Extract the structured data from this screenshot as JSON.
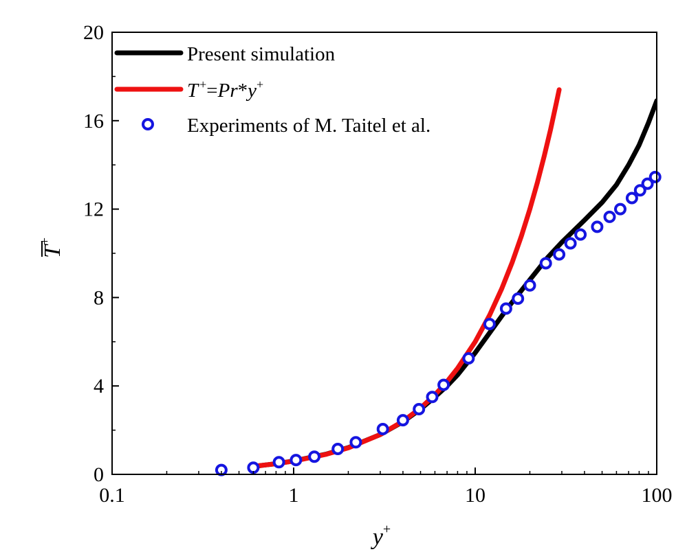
{
  "chart_data": {
    "type": "line",
    "title": "",
    "xlabel": "y",
    "xlabel_sup": "+",
    "ylabel": "T",
    "ylabel_sup": "+",
    "xscale": "log",
    "xlim": [
      0.1,
      100
    ],
    "ylim": [
      0,
      20
    ],
    "x_ticks": [
      0.1,
      1,
      10,
      100
    ],
    "x_tick_labels": [
      "0.1",
      "1",
      "10",
      "100"
    ],
    "y_ticks": [
      0,
      4,
      8,
      12,
      16,
      20
    ],
    "y_tick_labels": [
      "0",
      "4",
      "8",
      "12",
      "16",
      "20"
    ],
    "grid": false,
    "legend_position": "top-left",
    "series": [
      {
        "name": "Present simulation",
        "kind": "line",
        "color": "#000000",
        "x": [
          0.6,
          0.8,
          1,
          1.5,
          2,
          3,
          4,
          5,
          6,
          7,
          8,
          10,
          12,
          15,
          20,
          25,
          30,
          40,
          50,
          60,
          70,
          80,
          90,
          100
        ],
        "y": [
          0.36,
          0.48,
          0.61,
          0.91,
          1.21,
          1.8,
          2.38,
          2.95,
          3.5,
          4.0,
          4.5,
          5.5,
          6.4,
          7.5,
          8.8,
          9.8,
          10.5,
          11.5,
          12.3,
          13.1,
          14.0,
          14.9,
          15.9,
          16.9
        ]
      },
      {
        "name": "T+=Pr*y+",
        "legend_parts": [
          "T",
          "+",
          "=",
          "Pr",
          "*",
          "y",
          "+"
        ],
        "kind": "line",
        "color": "#ee1111",
        "x": [
          0.6,
          0.8,
          1,
          1.5,
          2,
          3,
          4,
          5,
          6,
          7,
          8,
          10,
          12,
          14,
          16,
          18,
          20,
          22,
          24,
          26,
          28,
          29
        ],
        "y": [
          0.36,
          0.48,
          0.6,
          0.9,
          1.2,
          1.8,
          2.4,
          3.0,
          3.6,
          4.2,
          4.8,
          6.0,
          7.2,
          8.4,
          9.6,
          10.8,
          12.0,
          13.2,
          14.4,
          15.6,
          16.8,
          17.4
        ]
      },
      {
        "name": "Experiments of M. Taitel et al.",
        "kind": "scatter",
        "color": "#1515e0",
        "x": [
          0.4,
          0.6,
          0.83,
          1.03,
          1.3,
          1.75,
          2.2,
          3.1,
          4,
          4.9,
          5.8,
          6.7,
          9.2,
          12,
          14.8,
          17.2,
          20,
          24.5,
          29,
          33.5,
          38,
          47,
          55,
          63,
          73,
          81,
          89,
          98
        ],
        "y": [
          0.2,
          0.3,
          0.55,
          0.65,
          0.8,
          1.15,
          1.45,
          2.05,
          2.45,
          2.95,
          3.5,
          4.05,
          5.25,
          6.8,
          7.5,
          7.95,
          8.55,
          9.55,
          9.95,
          10.45,
          10.85,
          11.2,
          11.65,
          12.0,
          12.5,
          12.85,
          13.15,
          13.45
        ]
      }
    ]
  }
}
